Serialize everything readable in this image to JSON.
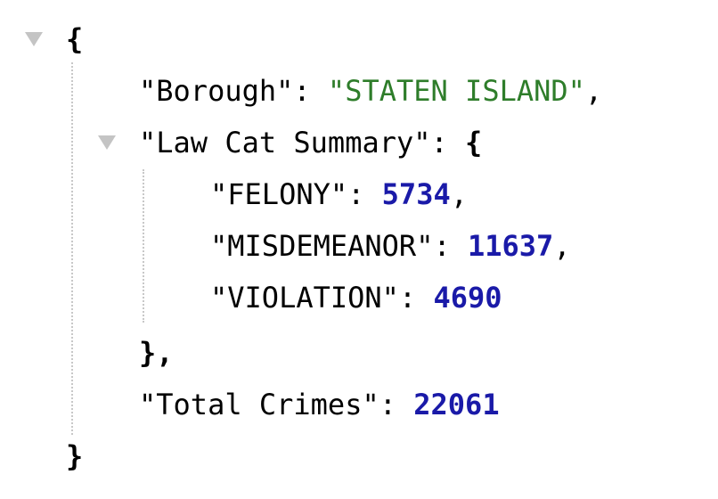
{
  "json": {
    "open_brace": "{",
    "close_brace": "}",
    "borough": {
      "key": "\"Borough\"",
      "sep": ": ",
      "value": "\"STATEN ISLAND\"",
      "trail": ","
    },
    "law_cat": {
      "key": "\"Law Cat Summary\"",
      "sep": ": ",
      "open": "{",
      "close": "},",
      "items": [
        {
          "key": "\"FELONY\"",
          "sep": ": ",
          "value": "5734",
          "trail": ","
        },
        {
          "key": "\"MISDEMEANOR\"",
          "sep": ": ",
          "value": "11637",
          "trail": ","
        },
        {
          "key": "\"VIOLATION\"",
          "sep": ": ",
          "value": "4690",
          "trail": ""
        }
      ]
    },
    "total": {
      "key": "\"Total Crimes\"",
      "sep": ": ",
      "value": "22061"
    }
  },
  "colors": {
    "string": "#2e7d2a",
    "number": "#1a1aa8",
    "toggle": "#c4c4c4",
    "guide": "#c8c8c8"
  },
  "icons": {
    "root_toggle": "collapse-triangle-icon",
    "law_cat_toggle": "collapse-triangle-icon"
  }
}
